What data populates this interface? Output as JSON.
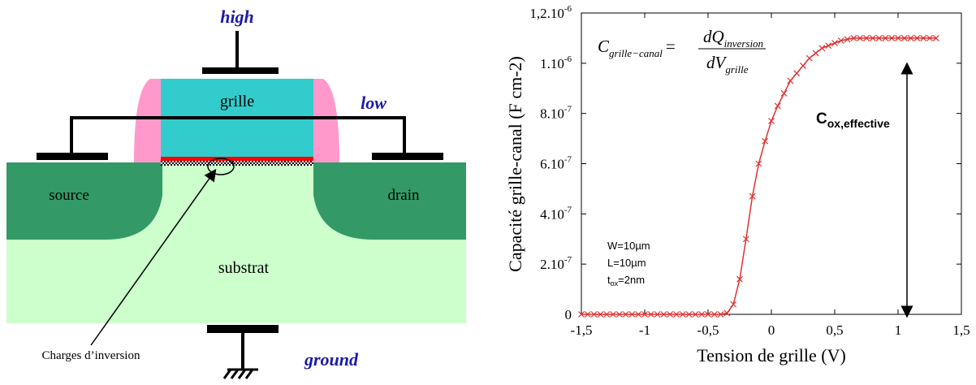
{
  "diagram": {
    "labels": {
      "high": "high",
      "low": "low",
      "gate": "grille",
      "source": "source",
      "drain": "drain",
      "substrate": "substrat",
      "charges": "Charges d’inversion",
      "ground": "ground"
    }
  },
  "chart_data": {
    "type": "line",
    "xlabel": "Tension de grille (V)",
    "ylabel": "Capacité grille-canal (F cm-2)",
    "x": [
      -1.5,
      -1.45,
      -1.4,
      -1.35,
      -1.3,
      -1.25,
      -1.2,
      -1.15,
      -1.1,
      -1.05,
      -1,
      -0.95,
      -0.9,
      -0.85,
      -0.8,
      -0.75,
      -0.7,
      -0.65,
      -0.6,
      -0.55,
      -0.5,
      -0.45,
      -0.4,
      -0.35,
      -0.3,
      -0.25,
      -0.2,
      -0.15,
      -0.1,
      -0.05,
      0,
      0.05,
      0.1,
      0.15,
      0.2,
      0.25,
      0.3,
      0.35,
      0.4,
      0.45,
      0.5,
      0.55,
      0.6,
      0.65,
      0.7,
      0.75,
      0.8,
      0.85,
      0.9,
      0.95,
      1,
      1.05,
      1.1,
      1.15,
      1.2,
      1.25,
      1.3
    ],
    "series": [
      {
        "color": "#e03030",
        "values": [
          0,
          0,
          0,
          0,
          0,
          0,
          0,
          0,
          0,
          0,
          0,
          0,
          0,
          0,
          0,
          0,
          0,
          0,
          0,
          0,
          0,
          0,
          0,
          5e-09,
          4e-08,
          1.4e-07,
          3e-07,
          4.7e-07,
          6e-07,
          6.9e-07,
          7.7e-07,
          8.3e-07,
          8.8e-07,
          9.3e-07,
          9.6e-07,
          9.9e-07,
          1.02e-06,
          1.04e-06,
          1.06e-06,
          1.07e-06,
          1.08e-06,
          1.09e-06,
          1.095e-06,
          1.1e-06,
          1.1e-06,
          1.1e-06,
          1.1e-06,
          1.1e-06,
          1.1e-06,
          1.1e-06,
          1.1e-06,
          1.1e-06,
          1.1e-06,
          1.1e-06,
          1.1e-06,
          1.1e-06,
          1.1e-06
        ]
      }
    ],
    "xlim": [
      -1.5,
      1.5
    ],
    "xticks": [
      {
        "value": -1.5,
        "label": "-1,5"
      },
      -1,
      {
        "value": -0.5,
        "label": "-0,5"
      },
      0,
      {
        "value": 0.5,
        "label": "0,5"
      },
      1,
      {
        "value": 1.5,
        "label": "1,5"
      }
    ],
    "ylim": [
      0,
      1.2e-06
    ],
    "yticks": [
      0,
      {
        "value": 2e-07,
        "label": "2.10-7"
      },
      {
        "value": 4e-07,
        "label": "4.10-7"
      },
      {
        "value": 6e-07,
        "label": "6.10-7"
      },
      {
        "value": 8e-07,
        "label": "8.10-7"
      },
      {
        "value": 1e-06,
        "label": "1.10-6"
      },
      {
        "value": 1.2e-06,
        "label": "1,2.10-6"
      }
    ],
    "annotations": {
      "formula": {
        "lhs": "C",
        "lhs_sub": "grille−canal",
        "equals": "=",
        "num": "dQ",
        "num_sub": "inversion",
        "den": "dV",
        "den_sub": "grille"
      },
      "cox": {
        "symbol": "C",
        "sub": "ox,effective"
      },
      "params": {
        "w": "W=10µm",
        "l": "L=10µm",
        "t": "t",
        "t_sub": "ox",
        "t_rest": "=2nm"
      }
    }
  }
}
